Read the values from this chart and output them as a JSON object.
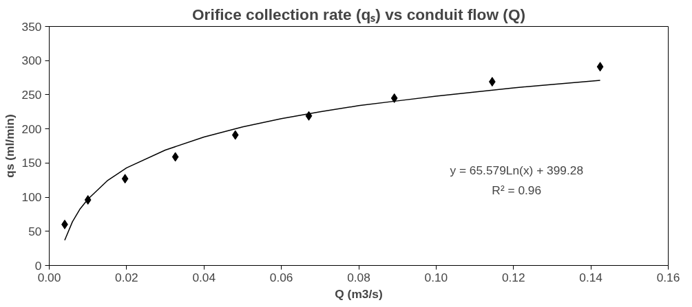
{
  "chart_data": {
    "type": "scatter",
    "title": "Orifice collection rate (qₛ) vs conduit flow (Q)",
    "xlabel": "Q (m3/s)",
    "ylabel": "qs (ml/min)",
    "series": [
      {
        "color": "#000000",
        "marker": "diamond",
        "x": [
          0.004,
          0.01,
          0.0196,
          0.0326,
          0.0481,
          0.0671,
          0.0892,
          0.1145,
          0.1424
        ],
        "values": [
          60,
          96,
          127,
          159,
          191,
          219,
          245,
          269,
          291
        ]
      },
      {
        "type": "line",
        "color": "#000000",
        "line_style": "solid",
        "x": [
          0.004,
          0.006,
          0.008,
          0.01,
          0.015,
          0.02,
          0.03,
          0.04,
          0.05,
          0.06,
          0.07,
          0.08,
          0.09,
          0.1,
          0.11,
          0.12,
          0.13,
          0.1424
        ],
        "values": [
          37,
          64,
          83,
          97,
          124,
          143,
          169,
          188,
          203,
          215,
          225,
          234,
          241,
          248,
          254,
          260,
          265,
          271
        ]
      }
    ],
    "annotations": [
      "y = 65.579Ln(x) + 399.28",
      "R² = 0.96"
    ],
    "xlim": [
      0,
      0.16
    ],
    "ylim": [
      0,
      350
    ],
    "xticks": [
      {
        "value": 0,
        "label": "0.00"
      },
      {
        "value": 0.02,
        "label": "0.02"
      },
      {
        "value": 0.04,
        "label": "0.04"
      },
      {
        "value": 0.06,
        "label": "0.06"
      },
      {
        "value": 0.08,
        "label": "0.08"
      },
      {
        "value": 0.1,
        "label": "0.10"
      },
      {
        "value": 0.12,
        "label": "0.12"
      },
      {
        "value": 0.14,
        "label": "0.14"
      },
      {
        "value": 0.16,
        "label": "0.16"
      }
    ],
    "yticks": [
      0,
      50,
      100,
      150,
      200,
      250,
      300,
      350
    ],
    "grid": false
  }
}
